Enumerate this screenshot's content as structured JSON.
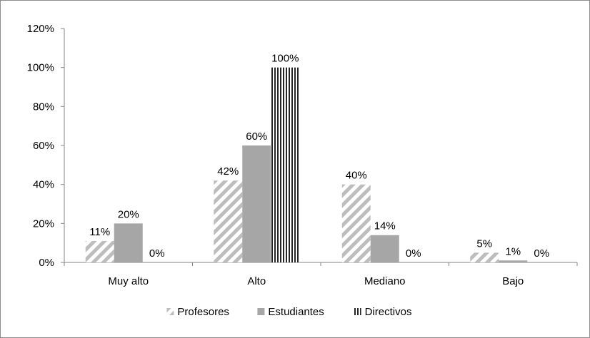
{
  "chart_data": {
    "type": "bar",
    "categories": [
      "Muy alto",
      "Alto",
      "Mediano",
      "Bajo"
    ],
    "series": [
      {
        "name": "Profesores",
        "values": [
          11,
          42,
          40,
          5
        ],
        "labels": [
          "11%",
          "42%",
          "40%",
          "5%"
        ],
        "pattern": "diagonal-stripes",
        "color": "#b3b3b3"
      },
      {
        "name": "Estudiantes",
        "values": [
          20,
          60,
          14,
          1
        ],
        "labels": [
          "20%",
          "60%",
          "14%",
          "1%"
        ],
        "pattern": "solid",
        "color": "#a6a6a6"
      },
      {
        "name": "Directivos",
        "values": [
          0,
          100,
          0,
          0
        ],
        "labels": [
          "0%",
          "100%",
          "0%",
          "0%"
        ],
        "pattern": "vertical-stripes",
        "color": "#262626"
      }
    ],
    "ylim": [
      0,
      120
    ],
    "yticks": [
      0,
      20,
      40,
      60,
      80,
      100,
      120
    ],
    "ytick_labels": [
      "0%",
      "20%",
      "40%",
      "60%",
      "80%",
      "100%",
      "120%"
    ],
    "grid": false,
    "legend": "bottom",
    "title": "",
    "xlabel": "",
    "ylabel": ""
  }
}
